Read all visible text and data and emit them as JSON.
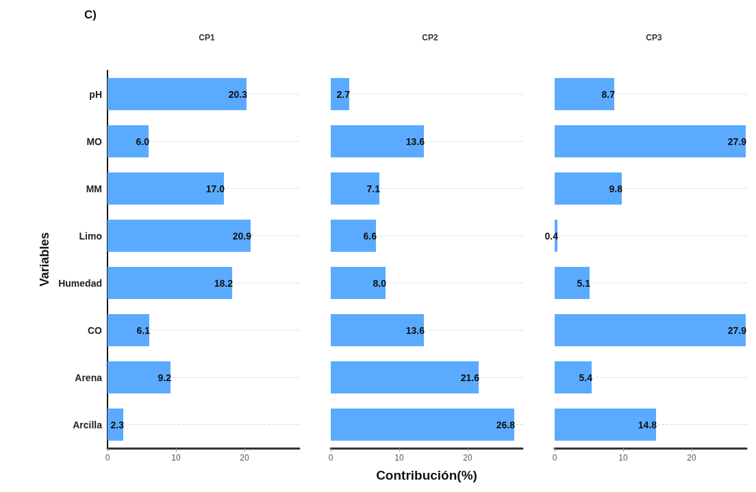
{
  "chart_data": [
    {
      "type": "bar",
      "orientation": "horizontal",
      "title": "CP1",
      "ylabel": "Variables",
      "annotations": [
        "C)"
      ],
      "categories": [
        "pH",
        "MO",
        "MM",
        "Limo",
        "Humedad",
        "CO",
        "Arena",
        "Arcilla"
      ],
      "values": [
        20.3,
        6.0,
        17.0,
        20.9,
        18.2,
        6.1,
        9.2,
        2.3
      ],
      "value_labels": [
        "20.3",
        "6.0",
        "17.0",
        "20.9",
        "18.2",
        "6.1",
        "9.2",
        "2.3"
      ],
      "color": "#5aabff",
      "xlim": [
        0,
        28
      ],
      "xticks": [
        0,
        10,
        20
      ],
      "grid": "y"
    },
    {
      "type": "bar",
      "orientation": "horizontal",
      "title": "CP2",
      "xlabel": "Contribución(%)",
      "categories": [
        null,
        null,
        null,
        null,
        null,
        null,
        null,
        null
      ],
      "values": [
        2.7,
        13.6,
        7.1,
        6.6,
        8.0,
        13.6,
        21.6,
        26.8
      ],
      "value_labels": [
        "2.7",
        "13.6",
        "7.1",
        "6.6",
        "8.0",
        "13.6",
        "21.6",
        "26.8"
      ],
      "color": "#5aabff",
      "xlim": [
        0,
        28
      ],
      "xticks": [
        0,
        10,
        20
      ],
      "grid": "y"
    },
    {
      "type": "bar",
      "orientation": "horizontal",
      "title": "CP3",
      "categories": [
        null,
        null,
        null,
        null,
        null,
        null,
        null,
        null
      ],
      "values": [
        8.7,
        27.9,
        9.8,
        0.4,
        5.1,
        27.9,
        5.4,
        14.8
      ],
      "value_labels": [
        "8.7",
        "27.9",
        "9.8",
        "0.4",
        "5.1",
        "27.9",
        "5.4",
        "14.8"
      ],
      "color": "#5aabff",
      "xlim": [
        0,
        28
      ],
      "xticks": [
        0,
        10,
        20
      ],
      "grid": "y"
    }
  ]
}
